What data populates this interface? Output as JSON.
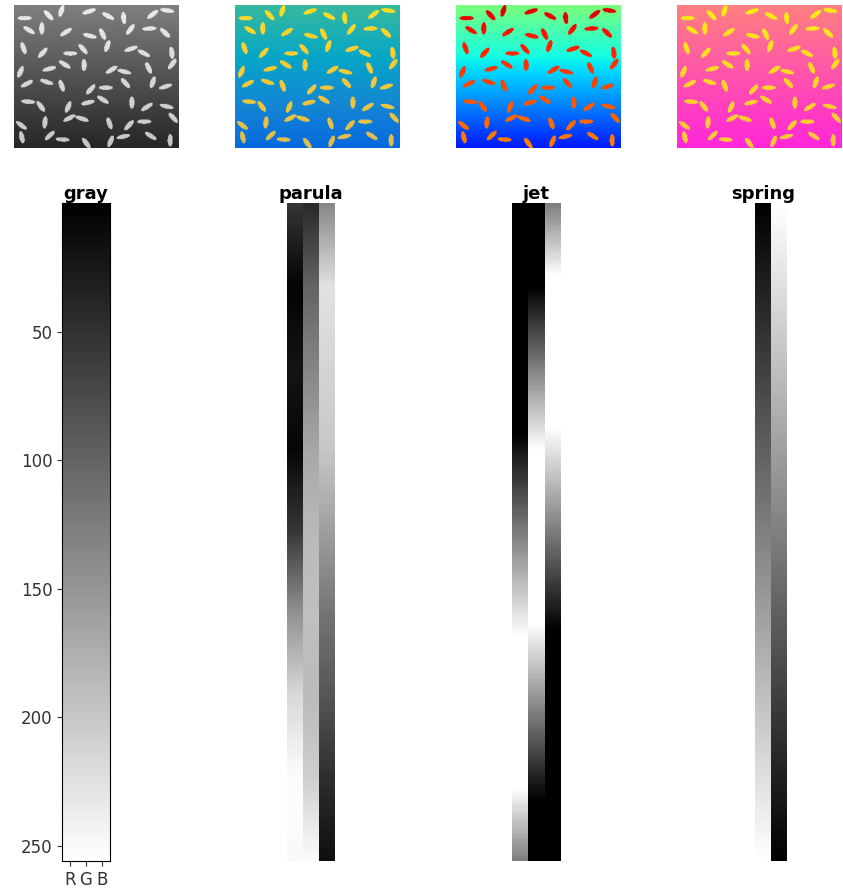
{
  "chart_data": [
    {
      "type": "image",
      "title": "gray",
      "categories": [
        "R",
        "G",
        "B"
      ],
      "ylim": [
        256,
        0
      ],
      "yticks": [
        50,
        100,
        150,
        200,
        250
      ],
      "tick_labels": true
    },
    {
      "type": "image",
      "title": "parula",
      "categories": [
        "R",
        "G",
        "B"
      ],
      "ylim": [
        256,
        0
      ],
      "tick_labels": false,
      "colormap_points": {
        "positions": [
          0.0,
          0.125,
          0.25,
          0.375,
          0.5,
          0.625,
          0.75,
          0.875,
          1.0
        ],
        "colors": [
          "#352a87",
          "#0363e1",
          "#1485d4",
          "#06a7c6",
          "#38b99e",
          "#92bf73",
          "#d9ba56",
          "#fcce2e",
          "#f9fb0e"
        ]
      }
    },
    {
      "type": "image",
      "title": "jet",
      "categories": [
        "R",
        "G",
        "B"
      ],
      "ylim": [
        256,
        0
      ],
      "tick_labels": false
    },
    {
      "type": "image",
      "title": "spring",
      "categories": [
        "R",
        "G",
        "B"
      ],
      "ylim": [
        256,
        0
      ],
      "tick_labels": false
    }
  ]
}
